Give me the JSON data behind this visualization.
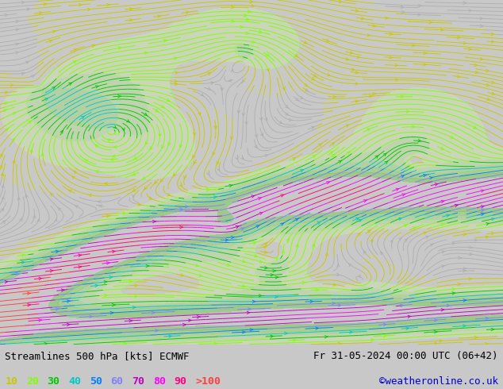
{
  "title_left": "Streamlines 500 hPa [kts] ECMWF",
  "title_right": "Fr 31-05-2024 00:00 UTC (06+42)",
  "credit": "©weatheronline.co.uk",
  "legend_values": [
    "10",
    "20",
    "30",
    "40",
    "50",
    "60",
    "70",
    "80",
    "90",
    ">100"
  ],
  "legend_colors": [
    "#c8c800",
    "#80ff00",
    "#00c800",
    "#00c8c8",
    "#0080ff",
    "#8080ff",
    "#c000c0",
    "#ff00ff",
    "#ff0080",
    "#ff4040"
  ],
  "bg_color": "#ffffff",
  "map_bg": "#ffffff",
  "figsize": [
    6.34,
    4.9
  ],
  "dpi": 100,
  "font_color": "#000000",
  "title_font_size": 9,
  "legend_font_size": 9.5,
  "credit_color": "#0000cc",
  "bottom_bg": "#c8c8c8"
}
